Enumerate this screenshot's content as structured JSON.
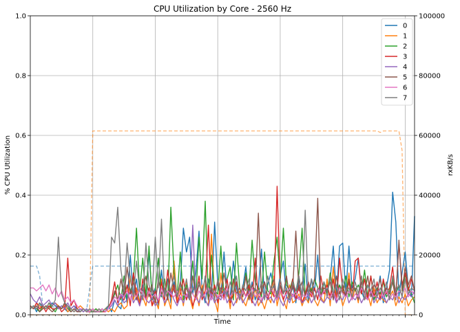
{
  "chart_data": {
    "type": "line",
    "title": "CPU Utilization by Core - 2560 Hz",
    "xlabel": "Time",
    "ylabel": "% CPU Utilization",
    "ylabel_right": "rxKB/s",
    "ylim": [
      0,
      1.0
    ],
    "ylim_right": [
      0,
      100000
    ],
    "yticks": [
      "0.0",
      "0.2",
      "0.4",
      "0.6",
      "0.8",
      "1.0"
    ],
    "yticks_right": [
      "0",
      "20000",
      "40000",
      "60000",
      "80000",
      "100000"
    ],
    "xlim": [
      0,
      123
    ],
    "x_major_ticks": [
      20,
      40,
      60,
      80,
      100,
      120
    ],
    "grid": true,
    "legend_placement": "top-right",
    "series": [
      {
        "name": "0",
        "color": "#1f77b4",
        "values": [
          0.02,
          0.03,
          0.01,
          0.04,
          0.02,
          0.03,
          0.02,
          0.04,
          0.03,
          0.02,
          0.03,
          0.02,
          0.01,
          0.02,
          0.03,
          0.02,
          0.01,
          0.02,
          0.01,
          0.01,
          0.01,
          0.02,
          0.01,
          0.02,
          0.01,
          0.03,
          0.01,
          0.05,
          0.03,
          0.02,
          0.09,
          0.04,
          0.2,
          0.06,
          0.12,
          0.04,
          0.1,
          0.05,
          0.21,
          0.06,
          0.09,
          0.03,
          0.15,
          0.06,
          0.12,
          0.04,
          0.11,
          0.07,
          0.1,
          0.29,
          0.21,
          0.26,
          0.07,
          0.14,
          0.28,
          0.08,
          0.04,
          0.12,
          0.05,
          0.31,
          0.1,
          0.06,
          0.21,
          0.07,
          0.06,
          0.18,
          0.09,
          0.05,
          0.09,
          0.16,
          0.05,
          0.11,
          0.05,
          0.09,
          0.22,
          0.06,
          0.1,
          0.14,
          0.09,
          0.07,
          0.13,
          0.18,
          0.06,
          0.05,
          0.1,
          0.04,
          0.12,
          0.06,
          0.17,
          0.04,
          0.12,
          0.08,
          0.2,
          0.05,
          0.11,
          0.08,
          0.12,
          0.23,
          0.06,
          0.23,
          0.24,
          0.07,
          0.23,
          0.09,
          0.12,
          0.19,
          0.08,
          0.05,
          0.1,
          0.07,
          0.05,
          0.07,
          0.13,
          0.04,
          0.09,
          0.15,
          0.41,
          0.31,
          0.06,
          0.14,
          0.21,
          0.09,
          0.06,
          0.33
        ]
      },
      {
        "name": "1",
        "color": "#ff7f0e",
        "values": [
          0.03,
          0.02,
          0.04,
          0.03,
          0.02,
          0.03,
          0.02,
          0.03,
          0.04,
          0.03,
          0.02,
          0.03,
          0.01,
          0.02,
          0.01,
          0.02,
          0.03,
          0.02,
          0.01,
          0.02,
          0.01,
          0.02,
          0.01,
          0.01,
          0.02,
          0.01,
          0.02,
          0.01,
          0.03,
          0.04,
          0.02,
          0.03,
          0.13,
          0.05,
          0.09,
          0.04,
          0.06,
          0.03,
          0.09,
          0.03,
          0.05,
          0.02,
          0.12,
          0.03,
          0.06,
          0.02,
          0.18,
          0.05,
          0.09,
          0.03,
          0.11,
          0.06,
          0.02,
          0.08,
          0.03,
          0.1,
          0.05,
          0.03,
          0.27,
          0.05,
          0.01,
          0.14,
          0.05,
          0.09,
          0.02,
          0.12,
          0.04,
          0.08,
          0.05,
          0.03,
          0.07,
          0.04,
          0.09,
          0.03,
          0.05,
          0.02,
          0.06,
          0.04,
          0.13,
          0.03,
          0.08,
          0.05,
          0.02,
          0.1,
          0.04,
          0.05,
          0.07,
          0.03,
          0.06,
          0.04,
          0.09,
          0.05,
          0.03,
          0.06,
          0.04,
          0.12,
          0.03,
          0.16,
          0.05,
          0.08,
          0.03,
          0.06,
          0.14,
          0.05,
          0.09,
          0.04,
          0.13,
          0.05,
          0.07,
          0.03,
          0.09,
          0.04,
          0.06,
          0.05,
          0.04,
          0.06,
          0.08,
          0.03,
          0.06,
          0.04,
          0.07,
          0.03,
          0.05,
          0.06
        ]
      },
      {
        "name": "2",
        "color": "#2ca02c",
        "values": [
          0.02,
          0.03,
          0.02,
          0.01,
          0.03,
          0.02,
          0.04,
          0.02,
          0.01,
          0.03,
          0.02,
          0.04,
          0.03,
          0.01,
          0.02,
          0.01,
          0.02,
          0.01,
          0.02,
          0.01,
          0.01,
          0.02,
          0.01,
          0.01,
          0.02,
          0.03,
          0.04,
          0.07,
          0.1,
          0.05,
          0.13,
          0.05,
          0.08,
          0.11,
          0.29,
          0.08,
          0.19,
          0.06,
          0.23,
          0.05,
          0.08,
          0.19,
          0.06,
          0.12,
          0.05,
          0.36,
          0.14,
          0.06,
          0.21,
          0.05,
          0.1,
          0.07,
          0.18,
          0.06,
          0.26,
          0.12,
          0.38,
          0.05,
          0.2,
          0.08,
          0.07,
          0.23,
          0.06,
          0.12,
          0.16,
          0.05,
          0.24,
          0.09,
          0.06,
          0.14,
          0.08,
          0.25,
          0.11,
          0.09,
          0.06,
          0.21,
          0.08,
          0.07,
          0.18,
          0.26,
          0.11,
          0.29,
          0.1,
          0.08,
          0.12,
          0.07,
          0.14,
          0.29,
          0.06,
          0.1,
          0.08,
          0.12,
          0.09,
          0.06,
          0.11,
          0.07,
          0.14,
          0.08,
          0.05,
          0.1,
          0.07,
          0.13,
          0.06,
          0.11,
          0.08,
          0.1,
          0.07,
          0.15,
          0.06,
          0.13,
          0.05,
          0.09,
          0.07,
          0.11,
          0.06,
          0.08,
          0.12,
          0.07,
          0.1,
          0.06,
          0.14,
          0.09,
          0.07,
          0.04
        ]
      },
      {
        "name": "3",
        "color": "#d62728",
        "values": [
          0.03,
          0.02,
          0.04,
          0.02,
          0.03,
          0.01,
          0.03,
          0.02,
          0.02,
          0.03,
          0.01,
          0.02,
          0.19,
          0.03,
          0.05,
          0.02,
          0.01,
          0.02,
          0.01,
          0.02,
          0.01,
          0.01,
          0.02,
          0.01,
          0.01,
          0.02,
          0.05,
          0.11,
          0.04,
          0.06,
          0.05,
          0.1,
          0.03,
          0.14,
          0.07,
          0.03,
          0.12,
          0.05,
          0.09,
          0.03,
          0.08,
          0.04,
          0.11,
          0.05,
          0.15,
          0.06,
          0.1,
          0.04,
          0.07,
          0.12,
          0.05,
          0.09,
          0.03,
          0.06,
          0.13,
          0.05,
          0.08,
          0.3,
          0.06,
          0.1,
          0.04,
          0.09,
          0.06,
          0.12,
          0.04,
          0.07,
          0.11,
          0.05,
          0.09,
          0.06,
          0.1,
          0.04,
          0.19,
          0.05,
          0.08,
          0.11,
          0.05,
          0.09,
          0.06,
          0.43,
          0.1,
          0.05,
          0.08,
          0.06,
          0.12,
          0.05,
          0.1,
          0.04,
          0.07,
          0.11,
          0.06,
          0.09,
          0.05,
          0.13,
          0.07,
          0.1,
          0.06,
          0.12,
          0.04,
          0.19,
          0.08,
          0.06,
          0.11,
          0.05,
          0.18,
          0.19,
          0.07,
          0.12,
          0.05,
          0.13,
          0.06,
          0.11,
          0.05,
          0.12,
          0.07,
          0.09,
          0.16,
          0.06,
          0.24,
          0.1,
          0.14,
          0.08,
          0.12,
          0.08
        ]
      },
      {
        "name": "4",
        "color": "#9467bd",
        "values": [
          0.07,
          0.05,
          0.04,
          0.06,
          0.03,
          0.04,
          0.05,
          0.03,
          0.04,
          0.02,
          0.03,
          0.02,
          0.04,
          0.02,
          0.03,
          0.01,
          0.02,
          0.01,
          0.02,
          0.01,
          0.02,
          0.01,
          0.01,
          0.02,
          0.01,
          0.02,
          0.03,
          0.05,
          0.03,
          0.07,
          0.04,
          0.05,
          0.08,
          0.04,
          0.06,
          0.03,
          0.07,
          0.05,
          0.04,
          0.06,
          0.03,
          0.05,
          0.07,
          0.04,
          0.06,
          0.08,
          0.05,
          0.03,
          0.06,
          0.04,
          0.07,
          0.05,
          0.3,
          0.06,
          0.04,
          0.08,
          0.05,
          0.03,
          0.07,
          0.04,
          0.06,
          0.05,
          0.08,
          0.04,
          0.06,
          0.03,
          0.05,
          0.07,
          0.04,
          0.06,
          0.08,
          0.05,
          0.03,
          0.06,
          0.04,
          0.07,
          0.05,
          0.06,
          0.04,
          0.08,
          0.05,
          0.03,
          0.06,
          0.04,
          0.07,
          0.05,
          0.06,
          0.04,
          0.05,
          0.07,
          0.04,
          0.06,
          0.08,
          0.05,
          0.04,
          0.06,
          0.05,
          0.07,
          0.04,
          0.06,
          0.05,
          0.08,
          0.04,
          0.06,
          0.05,
          0.07,
          0.04,
          0.06,
          0.05,
          0.08,
          0.04,
          0.06,
          0.05,
          0.07,
          0.04,
          0.06,
          0.05,
          0.08,
          0.04,
          0.06,
          0.05,
          0.07,
          0.06,
          0.08
        ]
      },
      {
        "name": "5",
        "color": "#8c564b",
        "values": [
          0.03,
          0.02,
          0.03,
          0.01,
          0.02,
          0.03,
          0.02,
          0.01,
          0.02,
          0.03,
          0.02,
          0.04,
          0.02,
          0.01,
          0.02,
          0.01,
          0.01,
          0.02,
          0.01,
          0.01,
          0.02,
          0.01,
          0.01,
          0.02,
          0.01,
          0.02,
          0.04,
          0.08,
          0.05,
          0.12,
          0.06,
          0.16,
          0.07,
          0.11,
          0.05,
          0.09,
          0.08,
          0.13,
          0.06,
          0.1,
          0.04,
          0.12,
          0.07,
          0.09,
          0.05,
          0.14,
          0.08,
          0.06,
          0.11,
          0.07,
          0.09,
          0.05,
          0.13,
          0.06,
          0.1,
          0.08,
          0.12,
          0.05,
          0.09,
          0.07,
          0.11,
          0.06,
          0.14,
          0.08,
          0.05,
          0.12,
          0.07,
          0.09,
          0.06,
          0.13,
          0.05,
          0.1,
          0.08,
          0.34,
          0.07,
          0.11,
          0.06,
          0.09,
          0.12,
          0.05,
          0.1,
          0.07,
          0.13,
          0.06,
          0.09,
          0.28,
          0.08,
          0.11,
          0.06,
          0.1,
          0.07,
          0.12,
          0.39,
          0.06,
          0.09,
          0.08,
          0.11,
          0.05,
          0.13,
          0.07,
          0.1,
          0.06,
          0.12,
          0.08,
          0.09,
          0.05,
          0.11,
          0.07,
          0.13,
          0.06,
          0.1,
          0.08,
          0.12,
          0.06,
          0.09,
          0.07,
          0.11,
          0.05,
          0.25,
          0.08,
          0.16,
          0.1,
          0.13,
          0.08
        ]
      },
      {
        "name": "6",
        "color": "#e377c2",
        "values": [
          0.09,
          0.09,
          0.08,
          0.09,
          0.1,
          0.08,
          0.1,
          0.07,
          0.09,
          0.06,
          0.08,
          0.05,
          0.06,
          0.04,
          0.05,
          0.03,
          0.02,
          0.02,
          0.01,
          0.01,
          0.02,
          0.01,
          0.01,
          0.02,
          0.01,
          0.02,
          0.04,
          0.06,
          0.05,
          0.07,
          0.06,
          0.08,
          0.05,
          0.07,
          0.06,
          0.09,
          0.07,
          0.05,
          0.08,
          0.06,
          0.07,
          0.05,
          0.09,
          0.06,
          0.08,
          0.07,
          0.06,
          0.08,
          0.05,
          0.07,
          0.06,
          0.09,
          0.07,
          0.05,
          0.08,
          0.06,
          0.07,
          0.09,
          0.05,
          0.08,
          0.06,
          0.07,
          0.05,
          0.09,
          0.06,
          0.08,
          0.07,
          0.05,
          0.08,
          0.06,
          0.07,
          0.09,
          0.06,
          0.08,
          0.05,
          0.07,
          0.06,
          0.09,
          0.07,
          0.05,
          0.08,
          0.06,
          0.07,
          0.09,
          0.06,
          0.08,
          0.05,
          0.07,
          0.06,
          0.08,
          0.07,
          0.05,
          0.09,
          0.06,
          0.08,
          0.07,
          0.06,
          0.08,
          0.05,
          0.09,
          0.07,
          0.06,
          0.08,
          0.05,
          0.07,
          0.06,
          0.09,
          0.07,
          0.05,
          0.08,
          0.06,
          0.07,
          0.09,
          0.06,
          0.08,
          0.05,
          0.07,
          0.06,
          0.08,
          0.07,
          0.09,
          0.06,
          0.08,
          0.07
        ]
      },
      {
        "name": "7",
        "color": "#7f7f7f",
        "values": [
          0.02,
          0.03,
          0.02,
          0.04,
          0.03,
          0.02,
          0.04,
          0.03,
          0.05,
          0.26,
          0.07,
          0.04,
          0.03,
          0.02,
          0.01,
          0.02,
          0.01,
          0.02,
          0.01,
          0.02,
          0.01,
          0.01,
          0.02,
          0.01,
          0.02,
          0.03,
          0.26,
          0.24,
          0.36,
          0.15,
          0.08,
          0.24,
          0.12,
          0.06,
          0.18,
          0.08,
          0.05,
          0.24,
          0.1,
          0.07,
          0.26,
          0.09,
          0.32,
          0.06,
          0.11,
          0.08,
          0.13,
          0.06,
          0.1,
          0.07,
          0.12,
          0.05,
          0.09,
          0.08,
          0.11,
          0.06,
          0.13,
          0.07,
          0.1,
          0.05,
          0.12,
          0.08,
          0.09,
          0.06,
          0.11,
          0.07,
          0.13,
          0.05,
          0.1,
          0.08,
          0.12,
          0.06,
          0.09,
          0.07,
          0.11,
          0.05,
          0.13,
          0.08,
          0.1,
          0.06,
          0.12,
          0.07,
          0.09,
          0.05,
          0.11,
          0.08,
          0.13,
          0.06,
          0.35,
          0.07,
          0.12,
          0.05,
          0.09,
          0.08,
          0.11,
          0.06,
          0.13,
          0.07,
          0.1,
          0.05,
          0.12,
          0.08,
          0.09,
          0.06,
          0.11,
          0.07,
          0.13,
          0.05,
          0.1,
          0.08,
          0.12,
          0.06,
          0.09,
          0.07,
          0.11,
          0.05,
          0.13,
          0.08,
          0.1,
          0.06,
          0.12,
          0.07,
          0.09,
          0.08
        ]
      },
      {
        "name": "",
        "axis": "right",
        "dashed": true,
        "color": "#ff7f0e",
        "points": [
          [
            0,
            0
          ],
          [
            19,
            0
          ],
          [
            20,
            61500
          ],
          [
            111,
            61500
          ],
          [
            112,
            61000
          ],
          [
            113,
            61500
          ],
          [
            118,
            61500
          ],
          [
            119,
            55000
          ],
          [
            120,
            0
          ],
          [
            123,
            0
          ]
        ]
      },
      {
        "name": "",
        "axis": "right",
        "dashed": true,
        "color": "#1f77b4",
        "points": [
          [
            0,
            16300
          ],
          [
            2,
            16300
          ],
          [
            3,
            13000
          ],
          [
            4,
            3000
          ],
          [
            18,
            1500
          ],
          [
            20,
            16300
          ],
          [
            110,
            16300
          ],
          [
            123,
            16300
          ]
        ]
      }
    ]
  }
}
